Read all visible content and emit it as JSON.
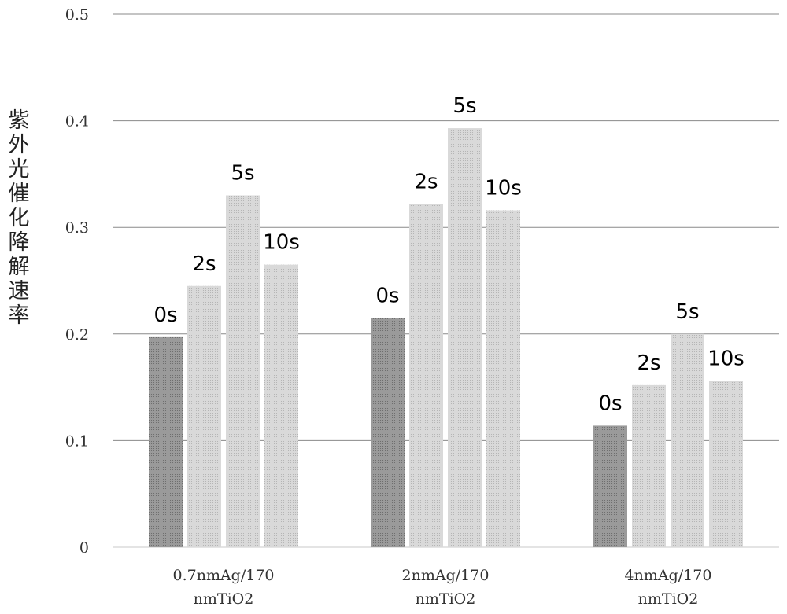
{
  "chart_data": {
    "type": "bar",
    "ylabel": "紫外光催化降解速率",
    "ylim": [
      0,
      0.5
    ],
    "yticks": [
      "0",
      "0.1",
      "0.2",
      "0.3",
      "0.4",
      "0.5"
    ],
    "grid": true,
    "categories": [
      [
        "0.7nmAg/170",
        "nmTiO2"
      ],
      [
        "2nmAg/170",
        "nmTiO2"
      ],
      [
        "4nmAg/170",
        "nmTiO2"
      ]
    ],
    "series": [
      {
        "name": "0s",
        "color": "#8c8c8c",
        "values": [
          0.197,
          0.215,
          0.114
        ]
      },
      {
        "name": "2s",
        "color": "#cfcfcf",
        "values": [
          0.245,
          0.322,
          0.152
        ]
      },
      {
        "name": "5s",
        "color": "#d6d6d6",
        "values": [
          0.33,
          0.393,
          0.2
        ]
      },
      {
        "name": "10s",
        "color": "#d9d9d9",
        "values": [
          0.265,
          0.316,
          0.156
        ]
      }
    ]
  }
}
